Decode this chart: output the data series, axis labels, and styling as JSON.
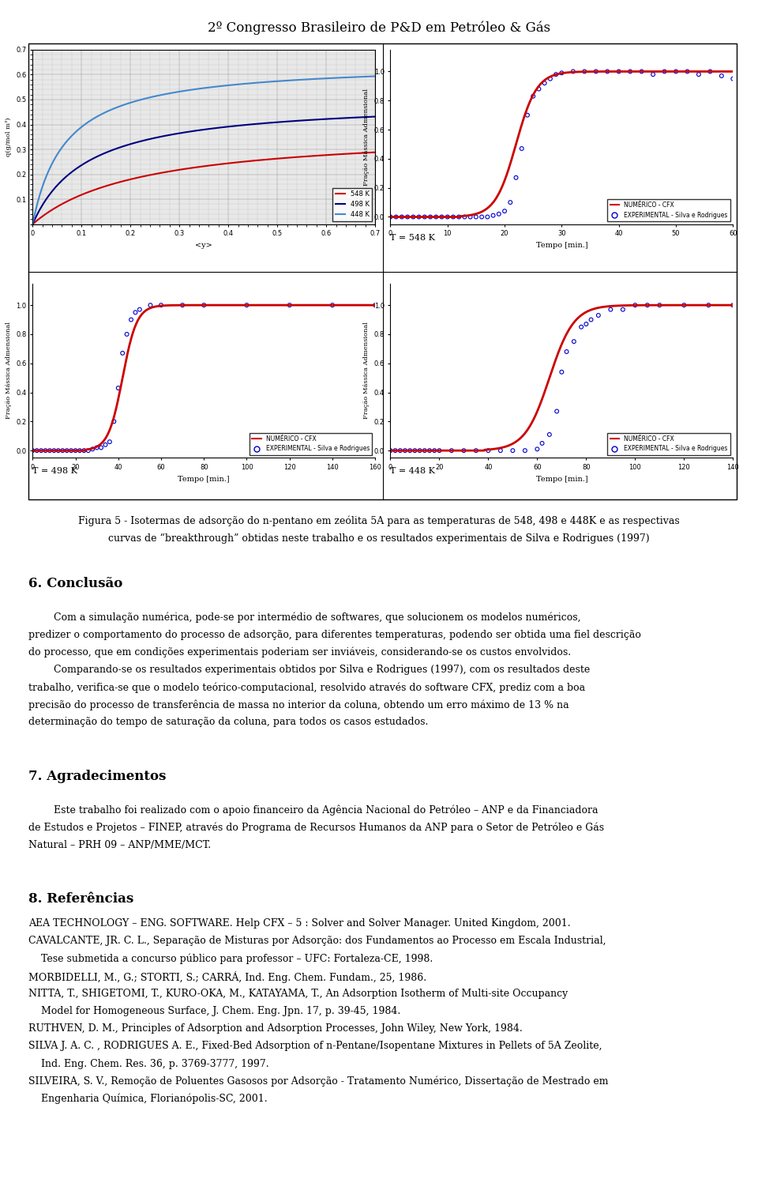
{
  "header": "2º Congresso Brasileiro de P&D em Petróleo & Gás",
  "figure_caption_line1": "Figura 5 - Isotermas de adsorção do n-pentano em zeólita 5A para as temperaturas de 548, 498 e 448K e as respectivas",
  "figure_caption_line2": "curvas de “breakthrough” obtidas neste trabalho e os resultados experimentais de Silva e Rodrigues (1997)",
  "section6_title": "6. Conclusão",
  "s6_p1_lines": [
    "        Com a simulação numérica, pode-se por intermédio de softwares, que solucionem os modelos numéricos,",
    "predizer o comportamento do processo de adsorção, para diferentes temperaturas, podendo ser obtida uma fiel descrição",
    "do processo, que em condições experimentais poderiam ser inviáveis, considerando-se os custos envolvidos."
  ],
  "s6_p2_lines": [
    "        Comparando-se os resultados experimentais obtidos por Silva e Rodrigues (1997), com os resultados deste",
    "trabalho, verifica-se que o modelo teórico-computacional, resolvido através do software CFX, prediz com a boa",
    "precisão do processo de transferência de massa no interior da coluna, obtendo um erro máximo de 13 % na",
    "determinação do tempo de saturação da coluna, para todos os casos estudados."
  ],
  "section7_title": "7. Agradecimentos",
  "s7_p1_lines": [
    "        Este trabalho foi realizado com o apoio financeiro da Agência Nacional do Petróleo – ANP e da Financiadora",
    "de Estudos e Projetos – FINEP, através do Programa de Recursos Humanos da ANP para o Setor de Petróleo e Gás",
    "Natural – PRH 09 – ANP/MME/MCT."
  ],
  "section8_title": "8. Referências",
  "refs": [
    "AEA TECHNOLOGY – ENG. SOFTWARE. Help CFX – 5 : Solver and Solver Manager. United Kingdom, 2001.",
    "CAVALCANTE, JR. C. L., Separação de Misturas por Adsorção: dos Fundamentos ao Processo em Escala Industrial,",
    "    Tese submetida a concurso público para professor – UFC: Fortaleza-CE, 1998.",
    "MORBIDELLI, M., G.; STORTI, S.; CARRÁ, Ind. Eng. Chem. Fundam., 25, 1986.",
    "NITTA, T., SHIGETOMI, T., KURO-OKA, M., KATAYAMA, T., An Adsorption Isotherm of Multi-site Occupancy",
    "    Model for Homogeneous Surface, J. Chem. Eng. Jpn. 17, p. 39-45, 1984.",
    "RUTHVEN, D. M., Principles of Adsorption and Adsorption Processes, John Wiley, New York, 1984.",
    "SILVA J. A. C. , RODRIGUES A. E., Fixed-Bed Adsorption of n-Pentane/Isopentane Mixtures in Pellets of 5A Zeolite,",
    "    Ind. Eng. Chem. Res. 36, p. 3769-3777, 1997.",
    "SILVEIRA, S. V., Remoção de Poluentes Gasosos por Adsorção - Tratamento Numérico, Dissertação de Mestrado em",
    "    Engenharia Química, Florianópolis-SC, 2001."
  ],
  "bg_color": "#ffffff",
  "text_color": "#000000",
  "red_line_color": "#cc0000",
  "blue_scatter_color": "#0000cc",
  "isotherm_548_color": "#cc0000",
  "isotherm_498_color": "#000080",
  "isotherm_448_color": "#4488cc"
}
